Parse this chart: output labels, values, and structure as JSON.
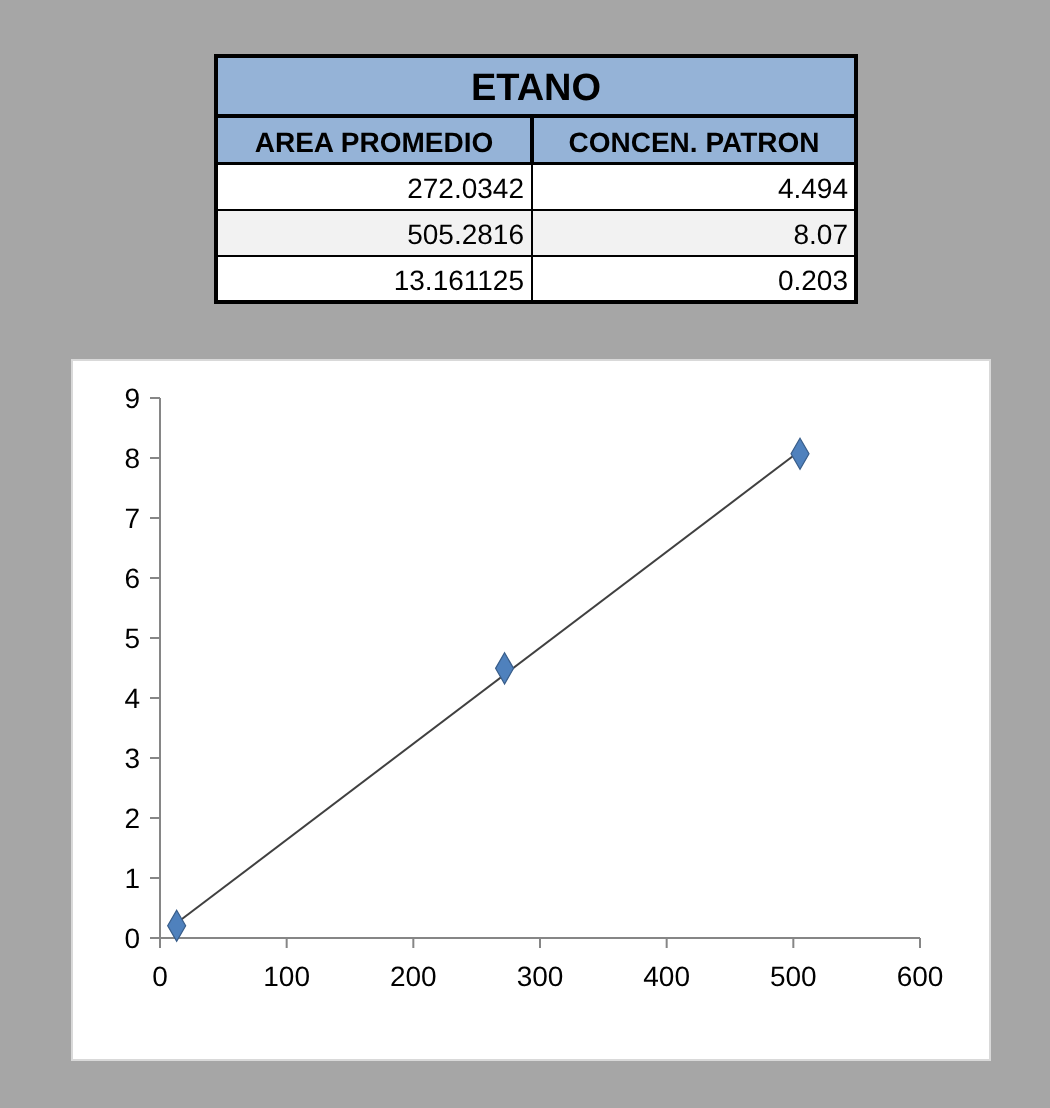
{
  "chart_data": [
    {
      "type": "other",
      "title": "ETANO",
      "annotations": [
        "AREA PROMEDIO",
        "CONCEN. PATRON",
        "272.0342",
        "4.494",
        "505.2816",
        "8.07",
        "13.161125",
        "0.203"
      ]
    },
    {
      "type": "scatter",
      "series": [
        {
          "type": "scatter",
          "color": "#4f81bd",
          "marker": "diamond",
          "x": [
            272.0342,
            505.2816,
            13.161125
          ],
          "values": [
            4.494,
            8.07,
            0.203
          ]
        },
        {
          "type": "line",
          "color": "#404040",
          "marker": "none",
          "line_style": "solid",
          "x": [
            13.161125,
            505.2816
          ],
          "values": [
            0.25,
            8.12
          ]
        }
      ],
      "xlim": [
        0,
        600
      ],
      "xticks": [
        0,
        100,
        200,
        300,
        400,
        500,
        600
      ],
      "ylim": [
        0,
        9
      ],
      "yticks": [
        0,
        1,
        2,
        3,
        4,
        5,
        6,
        7,
        8,
        9
      ],
      "grid": false
    }
  ]
}
